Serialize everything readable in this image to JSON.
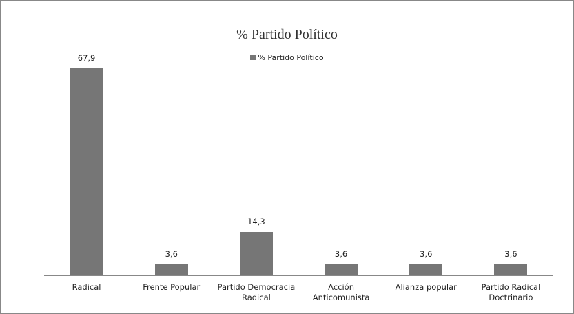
{
  "chart_data": {
    "type": "bar",
    "title": "% Partido Político",
    "categories": [
      "Radical",
      "Frente Popular",
      "Partido Democracia Radical",
      "Acción Anticomunista",
      "Alianza popular",
      "Partido Radical Doctrinario"
    ],
    "series": [
      {
        "name": "% Partido Político",
        "color": "#767676",
        "values": [
          67.9,
          3.6,
          14.3,
          3.6,
          3.6,
          3.6
        ],
        "value_labels": [
          "67,9",
          "3,6",
          "14,3",
          "3,6",
          "3,6",
          "3,6"
        ]
      }
    ]
  }
}
